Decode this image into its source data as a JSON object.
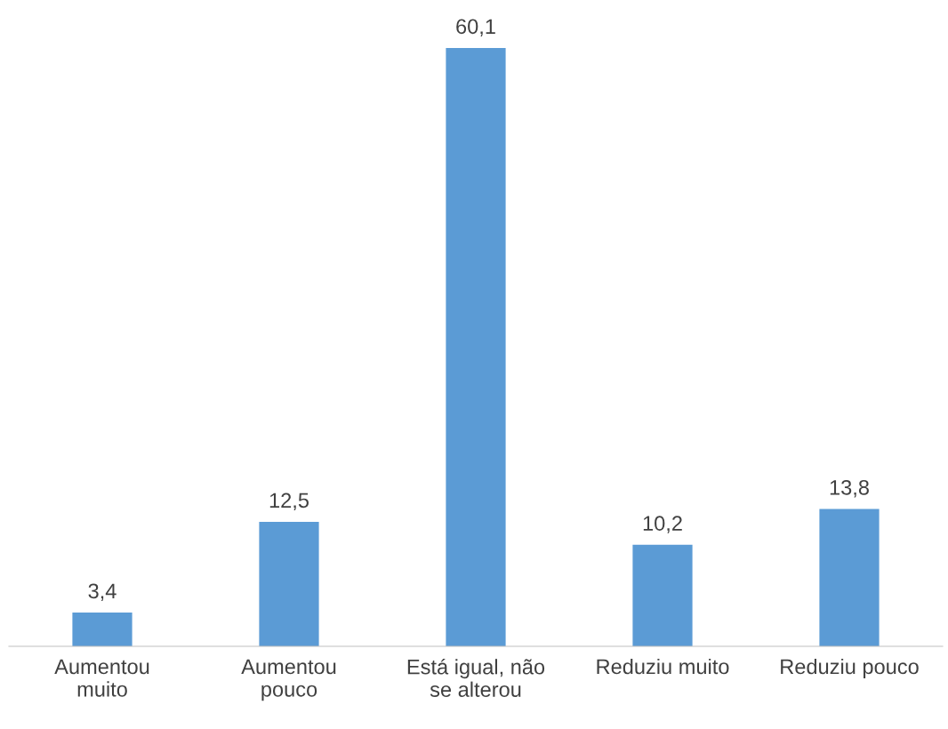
{
  "chart_data": {
    "type": "bar",
    "categories": [
      "Aumentou\nmuito",
      "Aumentou\npouco",
      "Está igual, não\nse alterou",
      "Reduziu muito",
      "Reduziu pouco"
    ],
    "values": [
      3.4,
      12.5,
      60.1,
      10.2,
      13.8
    ],
    "value_labels": [
      "3,4",
      "12,5",
      "60,1",
      "10,2",
      "13,8"
    ],
    "color": "#5b9bd5",
    "grid": false,
    "legend": false
  }
}
